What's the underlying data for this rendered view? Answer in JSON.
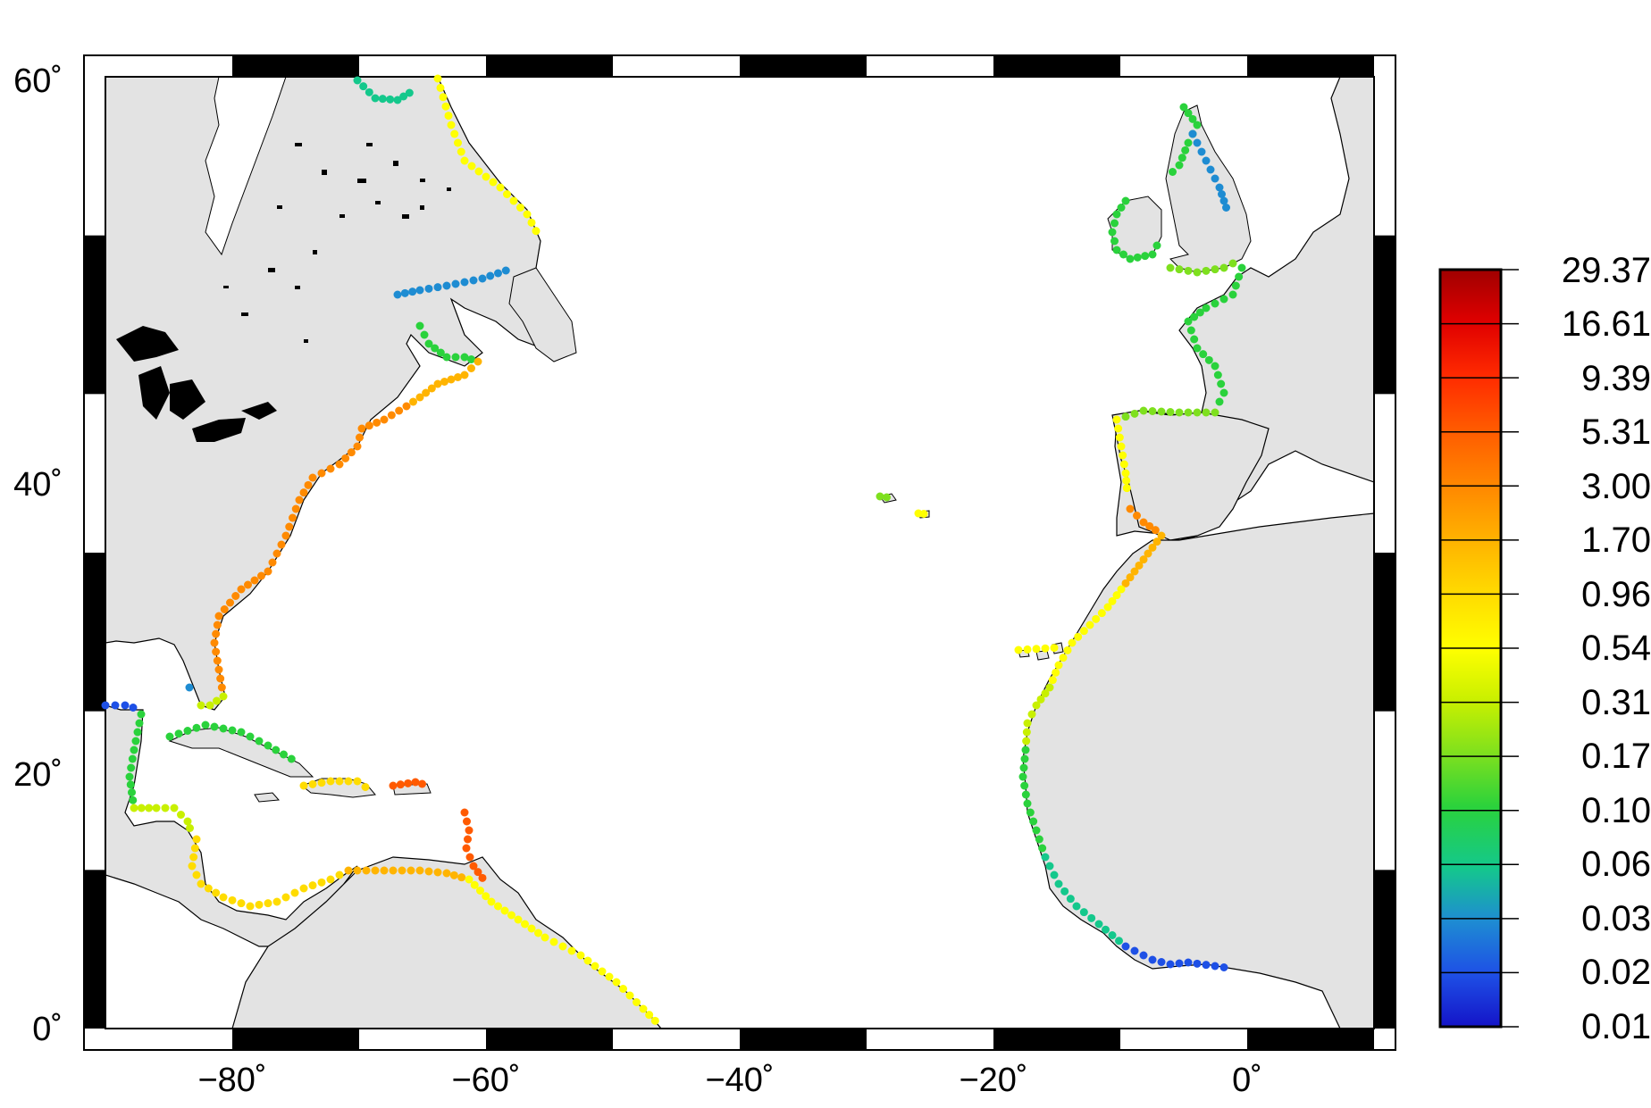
{
  "map": {
    "lon_range": [
      -90,
      10
    ],
    "lat_range": [
      0,
      60
    ],
    "x_ticks": [
      {
        "value": -80,
        "label": "−80˚"
      },
      {
        "value": -60,
        "label": "−60˚"
      },
      {
        "value": -40,
        "label": "−40˚"
      },
      {
        "value": -20,
        "label": "−20˚"
      },
      {
        "value": 0,
        "label": "0˚"
      }
    ],
    "y_ticks": [
      {
        "value": 0,
        "label": "0˚"
      },
      {
        "value": 20,
        "label": "20˚"
      },
      {
        "value": 40,
        "label": "40˚"
      },
      {
        "value": 60,
        "label": "60˚"
      }
    ],
    "land_color": "#e3e3e3",
    "lake_color": "#000000",
    "frame_color": "#000000"
  },
  "colorbar": {
    "labels": [
      "29.37",
      "16.61",
      "9.39",
      "5.31",
      "3.00",
      "1.70",
      "0.96",
      "0.54",
      "0.31",
      "0.17",
      "0.10",
      "0.06",
      "0.03",
      "0.02",
      "0.01"
    ],
    "colors": [
      "#a00000",
      "#e00000",
      "#ff2a00",
      "#ff5a00",
      "#ff8a00",
      "#ffb400",
      "#ffdc00",
      "#ffff00",
      "#c8f000",
      "#7ee01e",
      "#2ad23c",
      "#14c88c",
      "#1e8cd2",
      "#1e50e6",
      "#1414c8"
    ]
  }
}
